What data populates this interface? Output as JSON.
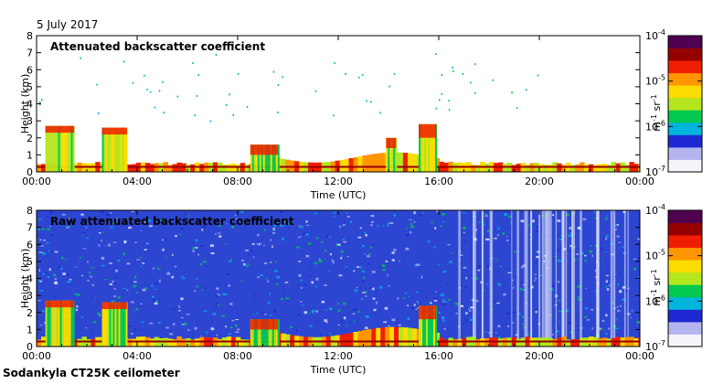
{
  "header": {
    "date": "5 July 2017"
  },
  "footer": {
    "instrument": "Sodankyla CT25K ceilometer"
  },
  "colormap": [
    "#f4f4fb",
    "#b4b4f0",
    "#1e28d2",
    "#00b4dc",
    "#00c850",
    "#b4e61e",
    "#fadc00",
    "#ff9600",
    "#f01e00",
    "#960000",
    "#500050"
  ],
  "chart_data": [
    {
      "type": "heatmap",
      "title": "Attenuated backscatter coefficient",
      "xlabel": "Time (UTC)",
      "ylabel": "Height (km)",
      "x_ticks": [
        "00:00",
        "04:00",
        "08:00",
        "12:00",
        "16:00",
        "20:00",
        "00:00"
      ],
      "x_range_hours": [
        0,
        24
      ],
      "ylim": [
        0,
        8
      ],
      "y_ticks": [
        0,
        1,
        2,
        3,
        4,
        5,
        6,
        7,
        8
      ],
      "colorbar": {
        "label_parts": [
          "m",
          "-1",
          " sr",
          "-1"
        ],
        "tick_bases": [
          "10",
          "10",
          "10",
          "10"
        ],
        "tick_exponents": [
          "-4",
          "-5",
          "-6",
          "-7"
        ],
        "range_exp": [
          -7,
          -4
        ],
        "log_scale": true
      },
      "cloud_layers": [
        {
          "start_h": 0.35,
          "end_h": 1.5,
          "base_km": 2.3,
          "top_km": 2.7
        },
        {
          "start_h": 2.6,
          "end_h": 3.6,
          "base_km": 2.2,
          "top_km": 2.6
        },
        {
          "start_h": 8.5,
          "end_h": 9.6,
          "base_km": 1.0,
          "top_km": 1.6
        },
        {
          "start_h": 13.9,
          "end_h": 14.3,
          "base_km": 1.4,
          "top_km": 2.0
        },
        {
          "start_h": 15.2,
          "end_h": 15.9,
          "base_km": 2.0,
          "top_km": 2.8
        }
      ]
    },
    {
      "type": "heatmap",
      "title": "Raw attenuated backscatter coefficient",
      "xlabel": "Time (UTC)",
      "ylabel": "Height (km)",
      "x_ticks": [
        "00:00",
        "04:00",
        "08:00",
        "12:00",
        "16:00",
        "20:00",
        "00:00"
      ],
      "x_range_hours": [
        0,
        24
      ],
      "ylim": [
        0,
        8
      ],
      "y_ticks": [
        0,
        1,
        2,
        3,
        4,
        5,
        6,
        7,
        8
      ],
      "colorbar": {
        "label_parts": [
          "m",
          "-1",
          " sr",
          "-1"
        ],
        "tick_bases": [
          "10",
          "10",
          "10",
          "10"
        ],
        "tick_exponents": [
          "-4",
          "-5",
          "-6",
          "-7"
        ],
        "range_exp": [
          -7,
          -4
        ],
        "log_scale": true
      },
      "cloud_layers": [
        {
          "start_h": 0.35,
          "end_h": 1.5,
          "base_km": 2.3,
          "top_km": 2.7
        },
        {
          "start_h": 2.6,
          "end_h": 3.6,
          "base_km": 2.2,
          "top_km": 2.6
        },
        {
          "start_h": 8.5,
          "end_h": 9.6,
          "base_km": 1.0,
          "top_km": 1.6
        },
        {
          "start_h": 15.2,
          "end_h": 15.9,
          "base_km": 1.6,
          "top_km": 2.4
        }
      ]
    }
  ]
}
